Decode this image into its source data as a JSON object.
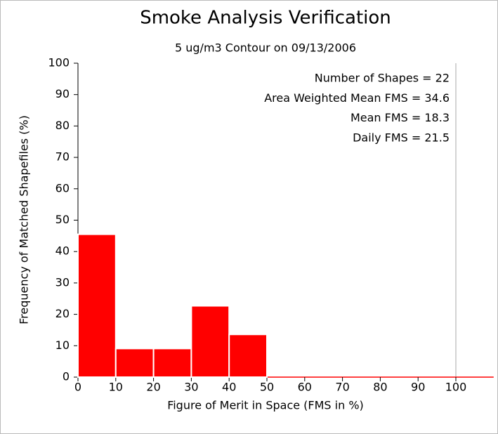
{
  "chart_data": {
    "type": "histogram",
    "title": "Smoke Analysis Verification",
    "subtitle": "5 ug/m3 Contour on 09/13/2006",
    "x_label": "Figure of Merit in Space (FMS in %)",
    "y_label": "Frequency of Matched Shapefiles (%)",
    "annotations": [
      "Number of Shapes = 22",
      "Area Weighted Mean FMS = 34.6",
      "Mean FMS = 18.3",
      "Daily FMS = 21.5"
    ],
    "bins": [
      0,
      10,
      20,
      30,
      40,
      50,
      60,
      70,
      80,
      90,
      100,
      110
    ],
    "values": [
      45.5,
      9.1,
      9.1,
      22.7,
      13.6,
      0,
      0,
      0,
      0,
      0,
      0
    ],
    "color": "#ff0000",
    "xlim": [
      0,
      110
    ],
    "ylim": [
      0,
      100
    ],
    "xticks": [
      0,
      10,
      20,
      30,
      40,
      50,
      60,
      70,
      80,
      90,
      100
    ],
    "yticks": [
      0,
      10,
      20,
      30,
      40,
      50,
      60,
      70,
      80,
      90,
      100
    ]
  }
}
